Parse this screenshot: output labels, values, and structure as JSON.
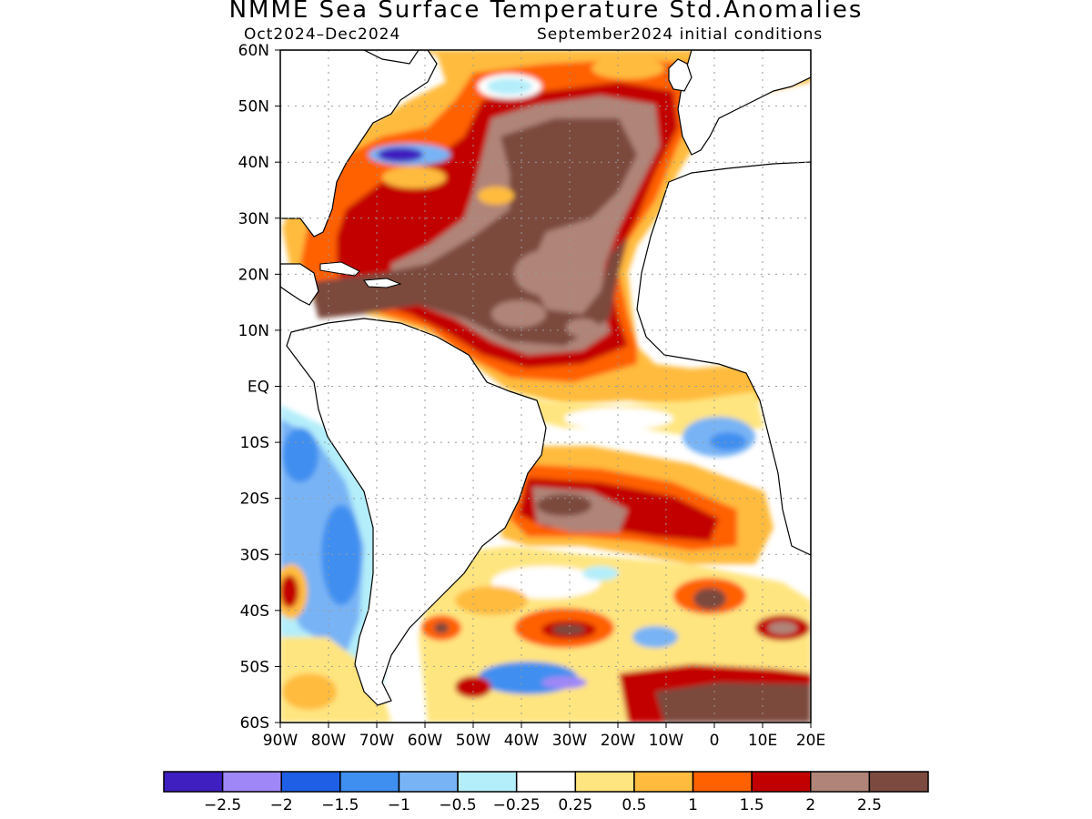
{
  "title": "NMME Sea Surface Temperature Std.Anomalies",
  "subtitle_left": "Oct2024–Dec2024",
  "subtitle_right": "September2024 initial conditions",
  "map": {
    "lon_range": [
      -90,
      20
    ],
    "lat_range": [
      -60,
      60
    ],
    "lat_labels": [
      "60S",
      "50S",
      "40S",
      "30S",
      "20S",
      "10S",
      "EQ",
      "10N",
      "20N",
      "30N",
      "40N",
      "50N",
      "60N"
    ],
    "lon_labels": [
      "90W",
      "80W",
      "70W",
      "60W",
      "50W",
      "40W",
      "30W",
      "20W",
      "10W",
      "0",
      "10E",
      "20E"
    ],
    "grid": true,
    "grid_style": "dotted"
  },
  "colorbar": {
    "colors": [
      "#3f1fbf",
      "#9f87f7",
      "#1f5fe6",
      "#3f8ff0",
      "#78b4f5",
      "#b4eefa",
      "#ffffff",
      "#ffe57f",
      "#ffbb3d",
      "#ff6000",
      "#c30000",
      "#b08478",
      "#7c4a3e"
    ],
    "labels": [
      "−2.5",
      "−2",
      "−1.5",
      "−1",
      "−0.5",
      "−0.25",
      "0.25",
      "0.5",
      "1",
      "1.5",
      "2",
      "2.5"
    ]
  }
}
